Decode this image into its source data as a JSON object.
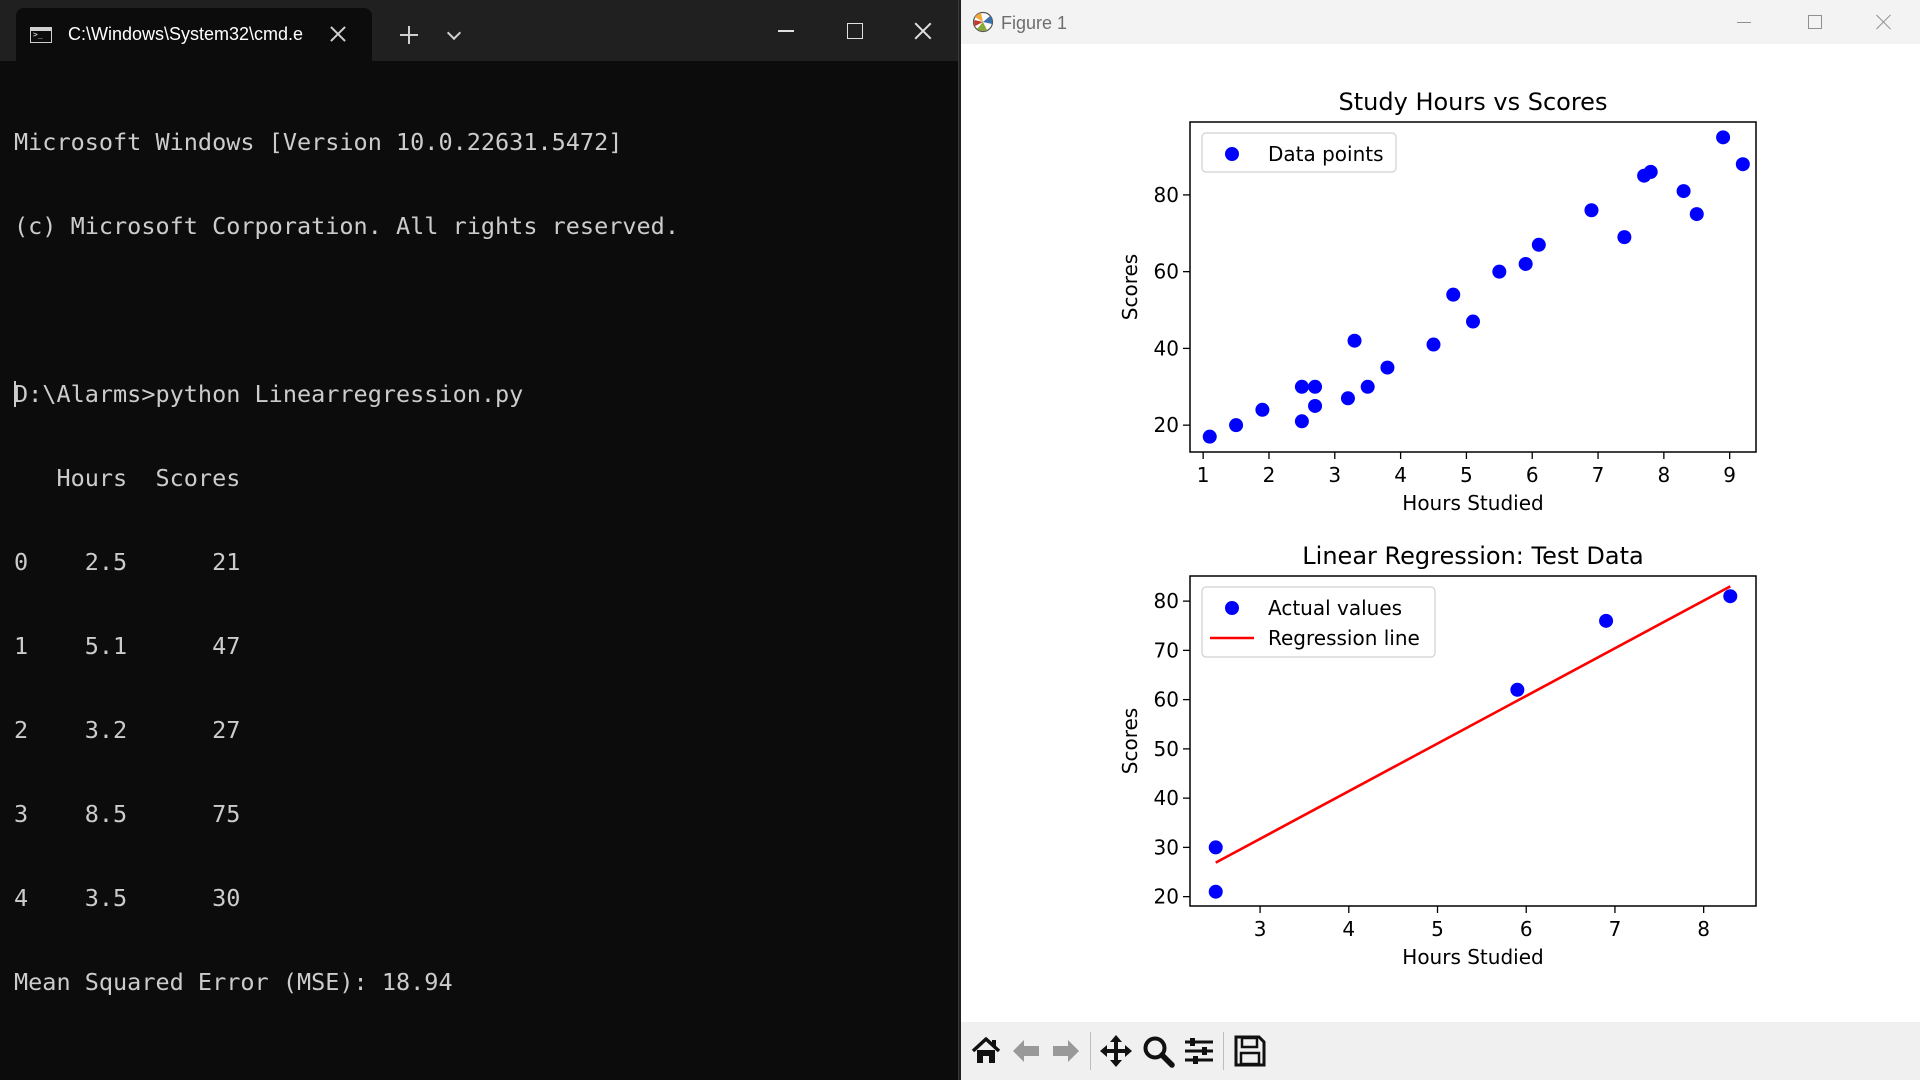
{
  "terminal": {
    "tab_title": "C:\\Windows\\System32\\cmd.e",
    "lines": [
      "Microsoft Windows [Version 10.0.22631.5472]",
      "(c) Microsoft Corporation. All rights reserved.",
      "",
      "D:\\Alarms>python Linearregression.py",
      "   Hours  Scores",
      "0    2.5      21",
      "1    5.1      47",
      "2    3.2      27",
      "3    8.5      75",
      "4    3.5      30",
      "Mean Squared Error (MSE): 18.94"
    ]
  },
  "figure_window": {
    "title": "Figure 1",
    "toolbar_icons": [
      "home-icon",
      "back-arrow-icon",
      "forward-arrow-icon",
      "pan-icon",
      "zoom-icon",
      "configure-subplots-icon",
      "save-icon"
    ]
  },
  "chart_data": [
    {
      "type": "scatter",
      "title": "Study Hours vs Scores",
      "xlabel": "Hours Studied",
      "ylabel": "Scores",
      "xlim": [
        0.8,
        9.4
      ],
      "ylim": [
        13,
        99
      ],
      "xticks": [
        1,
        2,
        3,
        4,
        5,
        6,
        7,
        8,
        9
      ],
      "yticks": [
        20,
        40,
        60,
        80
      ],
      "grid": false,
      "legend_position": "top-left",
      "series": [
        {
          "name": "Data points",
          "color": "#0000ff",
          "points": [
            [
              1.1,
              17
            ],
            [
              1.5,
              20
            ],
            [
              1.9,
              24
            ],
            [
              2.5,
              21
            ],
            [
              2.5,
              30
            ],
            [
              2.7,
              25
            ],
            [
              2.7,
              30
            ],
            [
              3.2,
              27
            ],
            [
              3.3,
              42
            ],
            [
              3.5,
              30
            ],
            [
              3.8,
              35
            ],
            [
              4.5,
              41
            ],
            [
              4.8,
              54
            ],
            [
              5.1,
              47
            ],
            [
              5.5,
              60
            ],
            [
              5.9,
              62
            ],
            [
              6.1,
              67
            ],
            [
              6.9,
              76
            ],
            [
              7.4,
              69
            ],
            [
              7.7,
              85
            ],
            [
              7.8,
              86
            ],
            [
              8.3,
              81
            ],
            [
              8.5,
              75
            ],
            [
              8.9,
              95
            ],
            [
              9.2,
              88
            ]
          ]
        }
      ]
    },
    {
      "type": "scatter",
      "title": "Linear Regression: Test Data",
      "xlabel": "Hours Studied",
      "ylabel": "Scores",
      "xlim": [
        2.21,
        8.59
      ],
      "ylim": [
        18.1,
        85.1
      ],
      "xticks": [
        3,
        4,
        5,
        6,
        7,
        8
      ],
      "yticks": [
        20,
        30,
        40,
        50,
        60,
        70,
        80
      ],
      "grid": false,
      "legend_position": "top-left",
      "series": [
        {
          "name": "Actual values",
          "color": "#0000ff",
          "points": [
            [
              2.5,
              21
            ],
            [
              2.5,
              30
            ],
            [
              5.9,
              62
            ],
            [
              6.9,
              76
            ],
            [
              8.3,
              81
            ]
          ]
        },
        {
          "name": "Regression line",
          "color": "#ff0000",
          "line": [
            [
              2.5,
              26.9
            ],
            [
              8.3,
              83.0
            ]
          ]
        }
      ]
    }
  ]
}
